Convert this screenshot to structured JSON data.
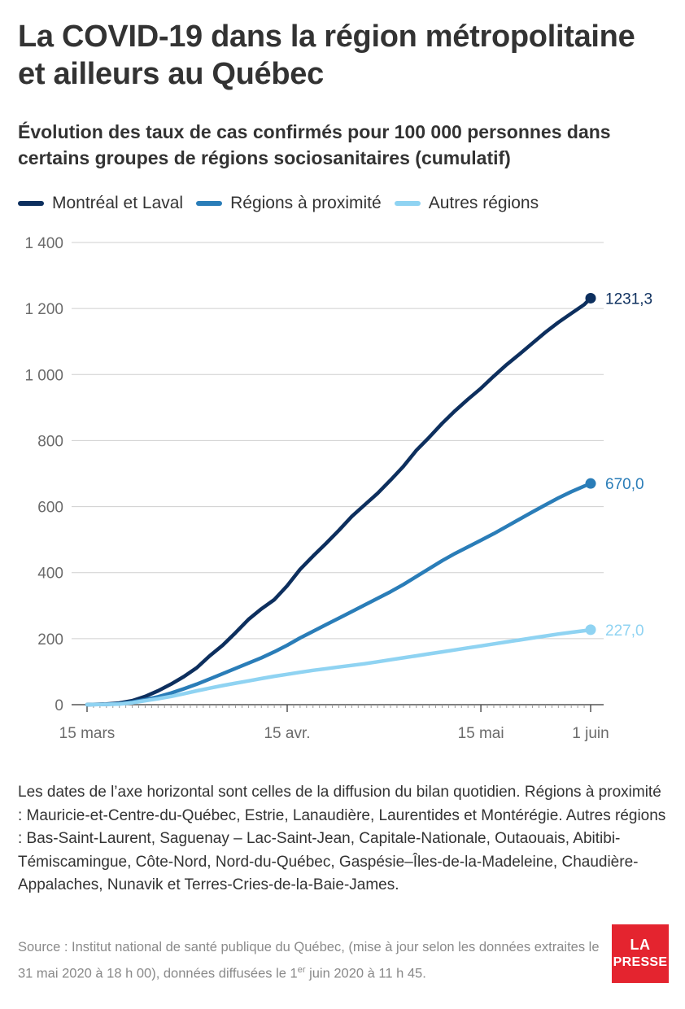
{
  "header": {
    "title": "La COVID-19 dans la région métropolitaine et ailleurs au Québec",
    "subtitle": "Évolution des taux de cas confirmés pour 100 000 personnes dans certains groupes de régions sociosanitaires (cumulatif)"
  },
  "colors": {
    "montreal": "#0d2f5e",
    "proximite": "#2a7db8",
    "autres": "#8fd3f2",
    "grid": "#cfcfcf",
    "axis": "#555555",
    "brand": "#e4242f"
  },
  "legend": [
    {
      "label": "Montréal et Laval",
      "color": "#0d2f5e"
    },
    {
      "label": "Régions à proximité",
      "color": "#2a7db8"
    },
    {
      "label": "Autres régions",
      "color": "#8fd3f2"
    }
  ],
  "chart_data": {
    "type": "line",
    "title": "",
    "xlabel": "",
    "ylabel": "",
    "ylim": [
      0,
      1400
    ],
    "yticks": [
      0,
      200,
      400,
      600,
      800,
      1000,
      1200,
      1400
    ],
    "ytick_labels": [
      "0",
      "200",
      "400",
      "600",
      "800",
      "1 000",
      "1 200",
      "1 400"
    ],
    "x_domain": [
      "2020-03-15",
      "2020-06-01"
    ],
    "xticks": [
      {
        "date": "2020-03-15",
        "label": "15 mars"
      },
      {
        "date": "2020-04-15",
        "label": "15 avr."
      },
      {
        "date": "2020-05-15",
        "label": "15 mai"
      },
      {
        "date": "2020-06-01",
        "label": "1 juin"
      }
    ],
    "grid": true,
    "legend_position": "top-left",
    "series": [
      {
        "name": "Montréal et Laval",
        "color": "#0d2f5e",
        "end_label": "1231,3",
        "points": [
          [
            "2020-03-15",
            0
          ],
          [
            "2020-03-18",
            2
          ],
          [
            "2020-03-20",
            5
          ],
          [
            "2020-03-22",
            12
          ],
          [
            "2020-03-24",
            25
          ],
          [
            "2020-03-26",
            42
          ],
          [
            "2020-03-28",
            62
          ],
          [
            "2020-03-30",
            85
          ],
          [
            "2020-04-01",
            112
          ],
          [
            "2020-04-03",
            148
          ],
          [
            "2020-04-05",
            180
          ],
          [
            "2020-04-07",
            218
          ],
          [
            "2020-04-09",
            258
          ],
          [
            "2020-04-11",
            290
          ],
          [
            "2020-04-13",
            318
          ],
          [
            "2020-04-15",
            360
          ],
          [
            "2020-04-17",
            410
          ],
          [
            "2020-04-19",
            450
          ],
          [
            "2020-04-21",
            488
          ],
          [
            "2020-04-23",
            528
          ],
          [
            "2020-04-25",
            570
          ],
          [
            "2020-04-27",
            605
          ],
          [
            "2020-04-29",
            640
          ],
          [
            "2020-05-01",
            680
          ],
          [
            "2020-05-03",
            722
          ],
          [
            "2020-05-05",
            770
          ],
          [
            "2020-05-07",
            810
          ],
          [
            "2020-05-09",
            852
          ],
          [
            "2020-05-11",
            890
          ],
          [
            "2020-05-13",
            925
          ],
          [
            "2020-05-15",
            958
          ],
          [
            "2020-05-17",
            995
          ],
          [
            "2020-05-19",
            1030
          ],
          [
            "2020-05-21",
            1062
          ],
          [
            "2020-05-23",
            1095
          ],
          [
            "2020-05-25",
            1128
          ],
          [
            "2020-05-27",
            1158
          ],
          [
            "2020-05-29",
            1185
          ],
          [
            "2020-05-31",
            1212
          ],
          [
            "2020-06-01",
            1231.3
          ]
        ]
      },
      {
        "name": "Régions à proximité",
        "color": "#2a7db8",
        "end_label": "670,0",
        "points": [
          [
            "2020-03-15",
            0
          ],
          [
            "2020-03-18",
            1
          ],
          [
            "2020-03-20",
            3
          ],
          [
            "2020-03-22",
            8
          ],
          [
            "2020-03-24",
            15
          ],
          [
            "2020-03-26",
            24
          ],
          [
            "2020-03-28",
            35
          ],
          [
            "2020-03-30",
            48
          ],
          [
            "2020-04-01",
            62
          ],
          [
            "2020-04-03",
            78
          ],
          [
            "2020-04-05",
            94
          ],
          [
            "2020-04-07",
            110
          ],
          [
            "2020-04-09",
            126
          ],
          [
            "2020-04-11",
            142
          ],
          [
            "2020-04-13",
            160
          ],
          [
            "2020-04-15",
            180
          ],
          [
            "2020-04-17",
            202
          ],
          [
            "2020-04-19",
            222
          ],
          [
            "2020-04-21",
            242
          ],
          [
            "2020-04-23",
            262
          ],
          [
            "2020-04-25",
            282
          ],
          [
            "2020-04-27",
            302
          ],
          [
            "2020-04-29",
            322
          ],
          [
            "2020-05-01",
            342
          ],
          [
            "2020-05-03",
            364
          ],
          [
            "2020-05-05",
            388
          ],
          [
            "2020-05-07",
            412
          ],
          [
            "2020-05-09",
            436
          ],
          [
            "2020-05-11",
            458
          ],
          [
            "2020-05-13",
            478
          ],
          [
            "2020-05-15",
            498
          ],
          [
            "2020-05-17",
            518
          ],
          [
            "2020-05-19",
            540
          ],
          [
            "2020-05-21",
            562
          ],
          [
            "2020-05-23",
            584
          ],
          [
            "2020-05-25",
            605
          ],
          [
            "2020-05-27",
            626
          ],
          [
            "2020-05-29",
            645
          ],
          [
            "2020-05-31",
            662
          ],
          [
            "2020-06-01",
            670.0
          ]
        ]
      },
      {
        "name": "Autres régions",
        "color": "#8fd3f2",
        "end_label": "227,0",
        "points": [
          [
            "2020-03-15",
            0
          ],
          [
            "2020-03-18",
            1
          ],
          [
            "2020-03-20",
            2
          ],
          [
            "2020-03-22",
            6
          ],
          [
            "2020-03-24",
            12
          ],
          [
            "2020-03-26",
            18
          ],
          [
            "2020-03-28",
            25
          ],
          [
            "2020-03-30",
            33
          ],
          [
            "2020-04-01",
            42
          ],
          [
            "2020-04-03",
            50
          ],
          [
            "2020-04-05",
            58
          ],
          [
            "2020-04-07",
            65
          ],
          [
            "2020-04-09",
            72
          ],
          [
            "2020-04-11",
            79
          ],
          [
            "2020-04-13",
            86
          ],
          [
            "2020-04-15",
            92
          ],
          [
            "2020-04-17",
            98
          ],
          [
            "2020-04-19",
            104
          ],
          [
            "2020-04-21",
            109
          ],
          [
            "2020-04-23",
            114
          ],
          [
            "2020-04-25",
            119
          ],
          [
            "2020-04-27",
            124
          ],
          [
            "2020-04-29",
            130
          ],
          [
            "2020-05-01",
            136
          ],
          [
            "2020-05-03",
            142
          ],
          [
            "2020-05-05",
            148
          ],
          [
            "2020-05-07",
            154
          ],
          [
            "2020-05-09",
            160
          ],
          [
            "2020-05-11",
            166
          ],
          [
            "2020-05-13",
            172
          ],
          [
            "2020-05-15",
            178
          ],
          [
            "2020-05-17",
            184
          ],
          [
            "2020-05-19",
            190
          ],
          [
            "2020-05-21",
            196
          ],
          [
            "2020-05-23",
            202
          ],
          [
            "2020-05-25",
            208
          ],
          [
            "2020-05-27",
            214
          ],
          [
            "2020-05-29",
            219
          ],
          [
            "2020-05-31",
            224
          ],
          [
            "2020-06-01",
            227.0
          ]
        ]
      }
    ]
  },
  "footnote": "Les dates de l’axe horizontal sont celles de la diffusion du bilan quotidien. Régions à proximité : Mauricie-et-Centre-du-Québec, Estrie, Lanaudière, Laurentides et Montérégie. Autres régions : Bas-Saint-Laurent, Saguenay – Lac-Saint-Jean, Capitale-Nationale, Outaouais, Abitibi-Témiscamingue, Côte-Nord, Nord-du-Québec, Gaspésie–Îles-de-la-Madeleine, Chaudière-Appalaches, Nunavik et Terres-Cries-de-la-Baie-James.",
  "source": {
    "part1": "Source : Institut national de santé publique du Québec, (mise à jour selon les données extraites le 31 mai 2020 à 18 h 00), données diffusées le 1",
    "sup": "er",
    "part2": " juin 2020 à 11 h 45."
  },
  "logo": {
    "line1": "LA",
    "line2": "PRESSE"
  }
}
